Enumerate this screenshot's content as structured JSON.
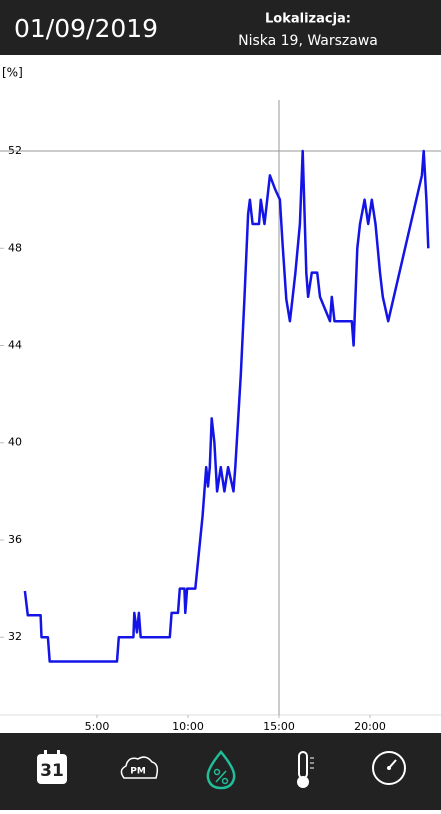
{
  "header": {
    "date": "01/09/2019",
    "location_label": "Lokalizacja:",
    "location": "Niska 19, Warszawa"
  },
  "chart_data": {
    "type": "line",
    "ylabel": "[%]",
    "x": [
      1.04,
      1.2,
      1.9,
      1.95,
      2.3,
      2.4,
      6.1,
      6.2,
      7.0,
      7.05,
      7.2,
      7.3,
      7.4,
      9.0,
      9.1,
      9.45,
      9.55,
      9.8,
      9.85,
      9.95,
      10.4,
      10.8,
      11.0,
      11.1,
      11.2,
      11.3,
      11.45,
      11.6,
      11.8,
      12.0,
      12.2,
      12.5,
      12.6,
      12.9,
      13.1,
      13.3,
      13.4,
      13.55,
      13.9,
      14.0,
      14.2,
      14.5,
      14.8,
      15.05,
      15.2,
      15.4,
      15.6,
      15.75,
      15.9,
      16.15,
      16.3,
      16.5,
      16.6,
      16.8,
      17.1,
      17.25,
      17.8,
      17.9,
      18.05,
      19.0,
      19.1,
      19.3,
      19.45,
      19.7,
      19.9,
      20.1,
      20.3,
      20.55,
      20.7,
      21.0,
      22.85,
      22.95,
      23.1,
      23.2
    ],
    "values": [
      33.9,
      32.9,
      32.9,
      32,
      32,
      31,
      31,
      32,
      32,
      33,
      32.2,
      33,
      32,
      32,
      33,
      33,
      34,
      34,
      33,
      34,
      34,
      37,
      39,
      38.2,
      39,
      41,
      40,
      38,
      39,
      38,
      39,
      38,
      39,
      42.8,
      45.9,
      49.4,
      50,
      49,
      49,
      50,
      49,
      51,
      50.4,
      50,
      48.1,
      45.9,
      45,
      46,
      47,
      49,
      52,
      47,
      46,
      47,
      47,
      46,
      45,
      46,
      45,
      45,
      44,
      48,
      49,
      50,
      49,
      50,
      49,
      47,
      46,
      45,
      51,
      52,
      50,
      48
    ],
    "color": "#1414e6",
    "xlim": [
      0,
      23.9
    ],
    "ylim": [
      28.8,
      54.1
    ],
    "xticks": [
      {
        "value": 5,
        "label": "5:00"
      },
      {
        "value": 10,
        "label": "10:00"
      },
      {
        "value": 15,
        "label": "15:00"
      },
      {
        "value": 20,
        "label": "20:00"
      }
    ],
    "yticks": [
      32,
      36,
      40,
      44,
      48,
      52
    ],
    "crosshair": {
      "x": 15,
      "y": 52
    }
  },
  "nav": {
    "calendar_day": "31",
    "pm_label": "PM"
  }
}
